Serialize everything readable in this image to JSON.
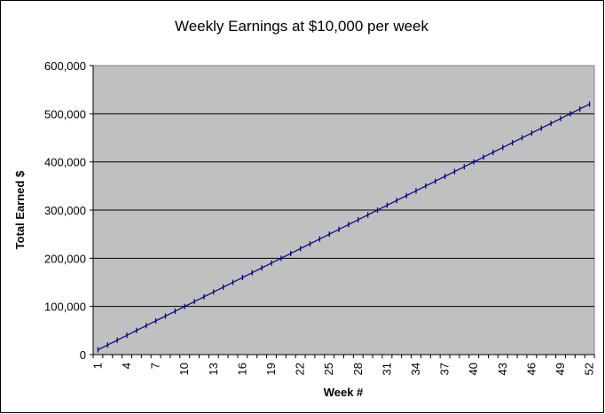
{
  "chart_data": {
    "type": "line",
    "title": "Weekly Earnings at $10,000 per week",
    "xlabel": "Week #",
    "ylabel": "Total Earned $",
    "ylim": [
      0,
      600000
    ],
    "yticks": [
      "0",
      "100,000",
      "200,000",
      "300,000",
      "400,000",
      "500,000",
      "600,000"
    ],
    "xticks": [
      "1",
      "4",
      "7",
      "10",
      "13",
      "16",
      "19",
      "22",
      "25",
      "28",
      "31",
      "34",
      "37",
      "40",
      "43",
      "46",
      "49",
      "52"
    ],
    "grid": {
      "horizontal": true,
      "vertical": false
    },
    "legend": "none",
    "colors": {
      "plot_background": "#c0c0c0",
      "line": "#000080",
      "gridline": "#000000"
    },
    "series": [
      {
        "x": [
          1,
          2,
          3,
          4,
          5,
          6,
          7,
          8,
          9,
          10,
          11,
          12,
          13,
          14,
          15,
          16,
          17,
          18,
          19,
          20,
          21,
          22,
          23,
          24,
          25,
          26,
          27,
          28,
          29,
          30,
          31,
          32,
          33,
          34,
          35,
          36,
          37,
          38,
          39,
          40,
          41,
          42,
          43,
          44,
          45,
          46,
          47,
          48,
          49,
          50,
          51,
          52
        ],
        "values": [
          10000,
          20000,
          30000,
          40000,
          50000,
          60000,
          70000,
          80000,
          90000,
          100000,
          110000,
          120000,
          130000,
          140000,
          150000,
          160000,
          170000,
          180000,
          190000,
          200000,
          210000,
          220000,
          230000,
          240000,
          250000,
          260000,
          270000,
          280000,
          290000,
          300000,
          310000,
          320000,
          330000,
          340000,
          350000,
          360000,
          370000,
          380000,
          390000,
          400000,
          410000,
          420000,
          430000,
          440000,
          450000,
          460000,
          470000,
          480000,
          490000,
          500000,
          510000,
          520000
        ]
      }
    ]
  }
}
